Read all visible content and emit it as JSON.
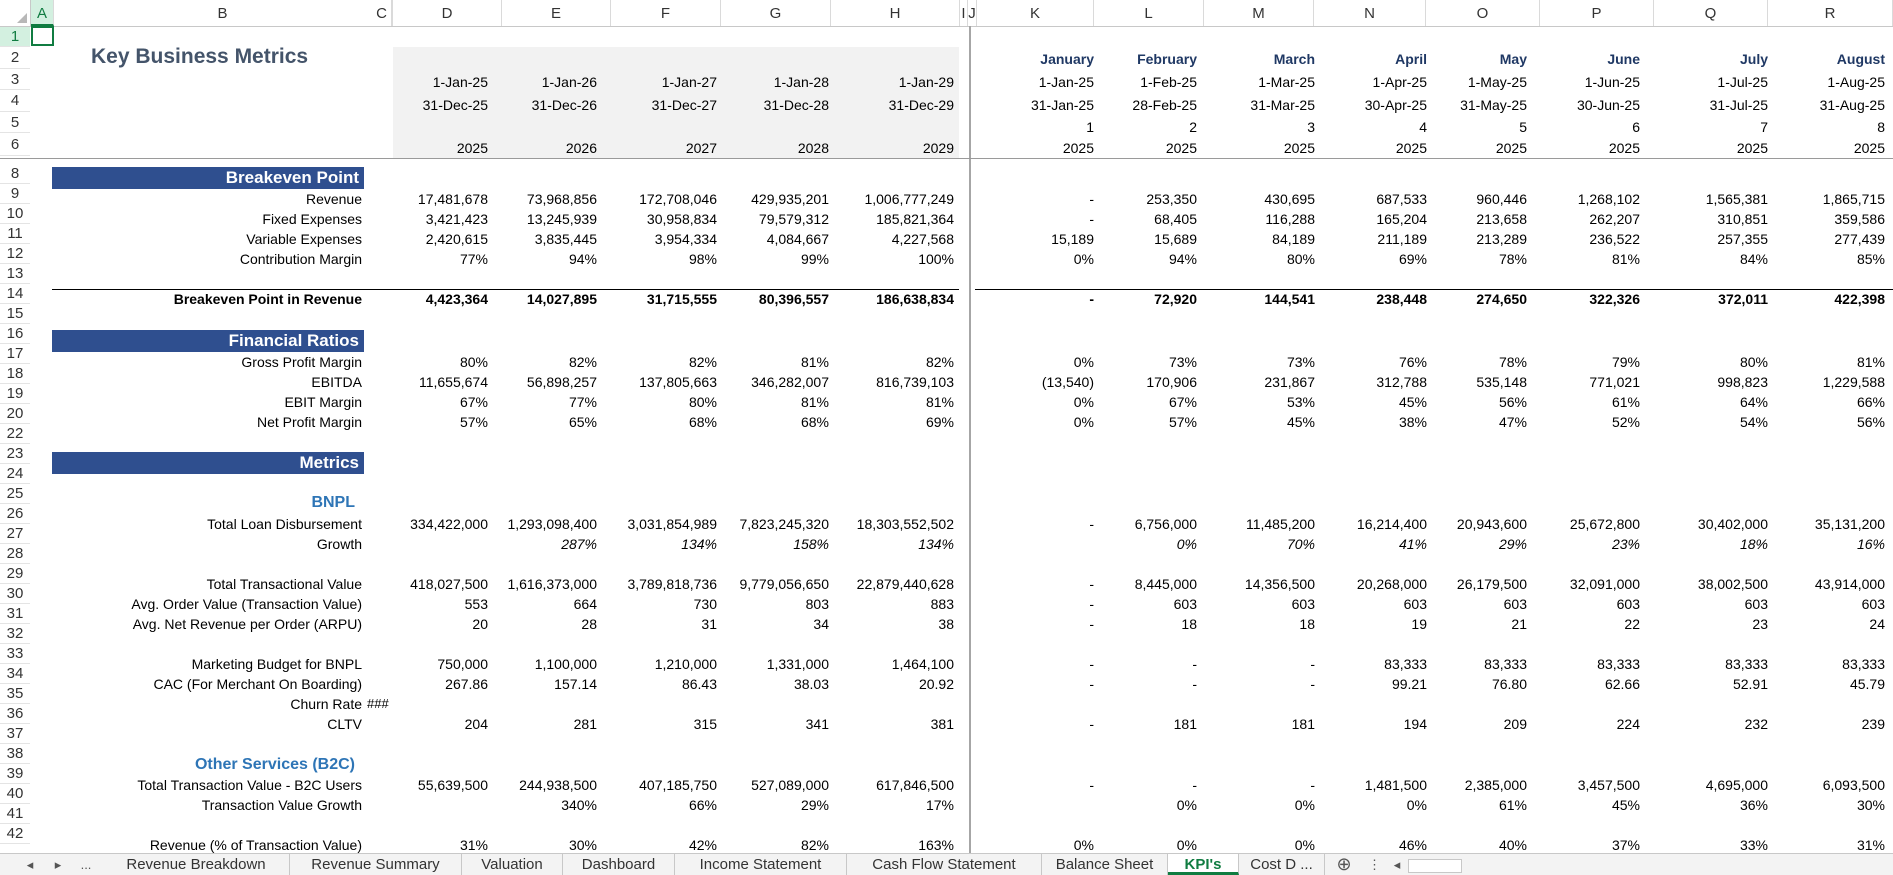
{
  "column_headers": [
    "A",
    "B",
    "C",
    "D",
    "E",
    "F",
    "G",
    "H",
    "I",
    "J",
    "K",
    "L",
    "M",
    "N",
    "O",
    "P",
    "Q",
    "R"
  ],
  "row_headers": [
    "1",
    "2",
    "3",
    "4",
    "5",
    "6",
    "8",
    "9",
    "10",
    "11",
    "12",
    "13",
    "14",
    "15",
    "16",
    "17",
    "18",
    "19",
    "20",
    "22",
    "23",
    "24",
    "25",
    "26",
    "27",
    "28",
    "29",
    "30",
    "31",
    "32",
    "33",
    "34",
    "35",
    "36",
    "37",
    "38",
    "39",
    "40",
    "41",
    "42"
  ],
  "title": "Key Business Metrics",
  "header": {
    "months": [
      "January",
      "February",
      "March",
      "April",
      "May",
      "June",
      "July",
      "August"
    ],
    "annual_start": [
      "1-Jan-25",
      "1-Jan-26",
      "1-Jan-27",
      "1-Jan-28",
      "1-Jan-29"
    ],
    "annual_end": [
      "31-Dec-25",
      "31-Dec-26",
      "31-Dec-27",
      "31-Dec-28",
      "31-Dec-29"
    ],
    "annual_year": [
      "2025",
      "2026",
      "2027",
      "2028",
      "2029"
    ],
    "monthly_start": [
      "1-Jan-25",
      "1-Feb-25",
      "1-Mar-25",
      "1-Apr-25",
      "1-May-25",
      "1-Jun-25",
      "1-Jul-25",
      "1-Aug-25"
    ],
    "monthly_end": [
      "31-Jan-25",
      "28-Feb-25",
      "31-Mar-25",
      "30-Apr-25",
      "31-May-25",
      "30-Jun-25",
      "31-Jul-25",
      "31-Aug-25"
    ],
    "monthly_index": [
      "1",
      "2",
      "3",
      "4",
      "5",
      "6",
      "7",
      "8"
    ],
    "monthly_year": [
      "2025",
      "2025",
      "2025",
      "2025",
      "2025",
      "2025",
      "2025",
      "2025"
    ]
  },
  "sections": {
    "breakeven": "Breakeven Point",
    "ratios": "Financial Ratios",
    "metrics": "Metrics",
    "bnpl": "BNPL",
    "other": "Other Services (B2C)"
  },
  "rows": [
    {
      "label": "Revenue",
      "annual": [
        "17,481,678",
        "73,968,856",
        "172,708,046",
        "429,935,201",
        "1,006,777,249"
      ],
      "monthly": [
        "-",
        "253,350",
        "430,695",
        "687,533",
        "960,446",
        "1,268,102",
        "1,565,381",
        "1,865,715"
      ]
    },
    {
      "label": "Fixed Expenses",
      "annual": [
        "3,421,423",
        "13,245,939",
        "30,958,834",
        "79,579,312",
        "185,821,364"
      ],
      "monthly": [
        "-",
        "68,405",
        "116,288",
        "165,204",
        "213,658",
        "262,207",
        "310,851",
        "359,586"
      ]
    },
    {
      "label": "Variable Expenses",
      "annual": [
        "2,420,615",
        "3,835,445",
        "3,954,334",
        "4,084,667",
        "4,227,568"
      ],
      "monthly": [
        "15,189",
        "15,689",
        "84,189",
        "211,189",
        "213,289",
        "236,522",
        "257,355",
        "277,439"
      ]
    },
    {
      "label": "Contribution Margin",
      "annual": [
        "77%",
        "94%",
        "98%",
        "99%",
        "100%"
      ],
      "monthly": [
        "0%",
        "94%",
        "80%",
        "69%",
        "78%",
        "81%",
        "84%",
        "85%"
      ]
    },
    {
      "label": "Breakeven Point in Revenue",
      "annual": [
        "4,423,364",
        "14,027,895",
        "31,715,555",
        "80,396,557",
        "186,638,834"
      ],
      "monthly": [
        "-",
        "72,920",
        "144,541",
        "238,448",
        "274,650",
        "322,326",
        "372,011",
        "422,398"
      ]
    },
    {
      "label": "Gross Profit Margin",
      "annual": [
        "80%",
        "82%",
        "82%",
        "81%",
        "82%"
      ],
      "monthly": [
        "0%",
        "73%",
        "73%",
        "76%",
        "78%",
        "79%",
        "80%",
        "81%"
      ]
    },
    {
      "label": "EBITDA",
      "annual": [
        "11,655,674",
        "56,898,257",
        "137,805,663",
        "346,282,007",
        "816,739,103"
      ],
      "monthly": [
        "(13,540)",
        "170,906",
        "231,867",
        "312,788",
        "535,148",
        "771,021",
        "998,823",
        "1,229,588"
      ]
    },
    {
      "label": "EBIT Margin",
      "annual": [
        "67%",
        "77%",
        "80%",
        "81%",
        "81%"
      ],
      "monthly": [
        "0%",
        "67%",
        "53%",
        "45%",
        "56%",
        "61%",
        "64%",
        "66%"
      ]
    },
    {
      "label": "Net Profit Margin",
      "annual": [
        "57%",
        "65%",
        "68%",
        "68%",
        "69%"
      ],
      "monthly": [
        "0%",
        "57%",
        "45%",
        "38%",
        "47%",
        "52%",
        "54%",
        "56%"
      ]
    },
    {
      "label": "Total Loan Disbursement",
      "annual": [
        "334,422,000",
        "1,293,098,400",
        "3,031,854,989",
        "7,823,245,320",
        "18,303,552,502"
      ],
      "monthly": [
        "-",
        "6,756,000",
        "11,485,200",
        "16,214,400",
        "20,943,600",
        "25,672,800",
        "30,402,000",
        "35,131,200"
      ]
    },
    {
      "label": "Growth",
      "annual": [
        "",
        "287%",
        "134%",
        "158%",
        "134%"
      ],
      "monthly": [
        "",
        "0%",
        "70%",
        "41%",
        "29%",
        "23%",
        "18%",
        "16%"
      ]
    },
    {
      "label": "Total Transactional Value",
      "annual": [
        "418,027,500",
        "1,616,373,000",
        "3,789,818,736",
        "9,779,056,650",
        "22,879,440,628"
      ],
      "monthly": [
        "-",
        "8,445,000",
        "14,356,500",
        "20,268,000",
        "26,179,500",
        "32,091,000",
        "38,002,500",
        "43,914,000"
      ]
    },
    {
      "label": "Avg. Order Value (Transaction Value)",
      "annual": [
        "553",
        "664",
        "730",
        "803",
        "883"
      ],
      "monthly": [
        "-",
        "603",
        "603",
        "603",
        "603",
        "603",
        "603",
        "603"
      ]
    },
    {
      "label": "Avg. Net Revenue per Order (ARPU)",
      "annual": [
        "20",
        "28",
        "31",
        "34",
        "38"
      ],
      "monthly": [
        "-",
        "18",
        "18",
        "19",
        "21",
        "22",
        "23",
        "24"
      ]
    },
    {
      "label": "Marketing Budget  for BNPL",
      "annual": [
        "750,000",
        "1,100,000",
        "1,210,000",
        "1,331,000",
        "1,464,100"
      ],
      "monthly": [
        "-",
        "-",
        "-",
        "83,333",
        "83,333",
        "83,333",
        "83,333",
        "83,333"
      ]
    },
    {
      "label": "CAC (For Merchant On Boarding)",
      "annual": [
        "267.86",
        "157.14",
        "86.43",
        "38.03",
        "20.92"
      ],
      "monthly": [
        "-",
        "-",
        "-",
        "99.21",
        "76.80",
        "62.66",
        "52.91",
        "45.79"
      ]
    },
    {
      "label": "Churn Rate",
      "annual": [
        "",
        "",
        "",
        "",
        ""
      ],
      "monthly": [
        "",
        "",
        "",
        "",
        "",
        "",
        "",
        ""
      ],
      "overflow": "###"
    },
    {
      "label": "CLTV",
      "annual": [
        "204",
        "281",
        "315",
        "341",
        "381"
      ],
      "monthly": [
        "-",
        "181",
        "181",
        "194",
        "209",
        "224",
        "232",
        "239"
      ]
    },
    {
      "label": "Total Transaction Value - B2C Users",
      "annual": [
        "55,639,500",
        "244,938,500",
        "407,185,750",
        "527,089,000",
        "617,846,500"
      ],
      "monthly": [
        "-",
        "-",
        "-",
        "1,481,500",
        "2,385,000",
        "3,457,500",
        "4,695,000",
        "6,093,500"
      ]
    },
    {
      "label": "Transaction Value Growth",
      "annual": [
        "",
        "340%",
        "66%",
        "29%",
        "17%"
      ],
      "monthly": [
        "",
        "0%",
        "0%",
        "0%",
        "61%",
        "45%",
        "36%",
        "30%"
      ]
    },
    {
      "label": "Revenue (% of Transaction Value)",
      "annual": [
        "31%",
        "30%",
        "42%",
        "82%",
        "163%"
      ],
      "monthly": [
        "0%",
        "0%",
        "0%",
        "46%",
        "40%",
        "37%",
        "33%",
        "31%"
      ]
    }
  ],
  "tabs": {
    "nav_prev": "◂",
    "nav_next": "▸",
    "ellipsis": "...",
    "sheets": [
      "Revenue Breakdown",
      "Revenue Summary",
      "Valuation",
      "Dashboard",
      "Income Statement",
      "Cash Flow Statement",
      "Balance Sheet",
      "KPI's",
      "Cost D ..."
    ],
    "active": "KPI's",
    "add": "⊕"
  }
}
